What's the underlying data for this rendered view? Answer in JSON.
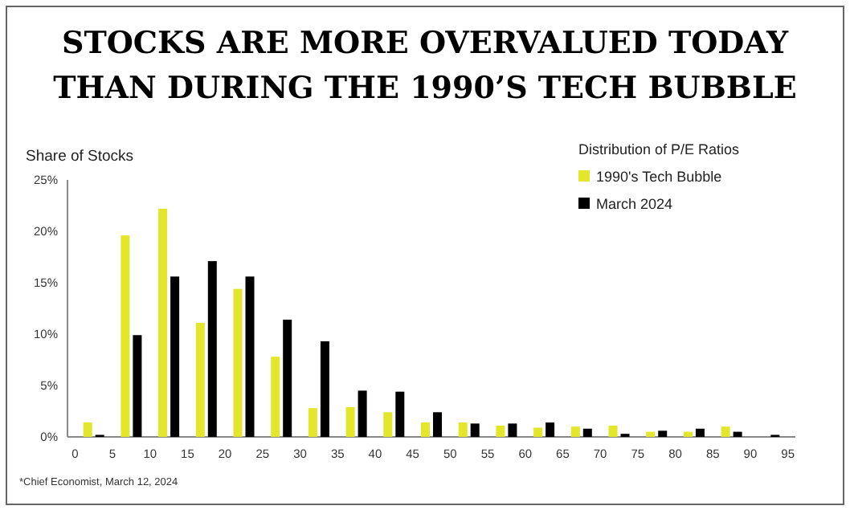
{
  "chart_data": {
    "type": "bar",
    "title": "STOCKS ARE MORE OVERVALUED TODAY THAN DURING THE 1990’S TECH BUBBLE",
    "ylabel": "Share of Stocks",
    "legend_title": "Distribution of P/E Ratios",
    "legend": "top right",
    "grid": false,
    "x": [
      2.5,
      7.5,
      12.5,
      17.5,
      22.5,
      27.5,
      32.5,
      37.5,
      42.5,
      47.5,
      52.5,
      57.5,
      62.5,
      67.5,
      72.5,
      77.5,
      82.5,
      87.5,
      92.5
    ],
    "xlim": [
      -1,
      96
    ],
    "xticks": [
      0,
      5,
      10,
      15,
      20,
      25,
      30,
      35,
      40,
      45,
      50,
      55,
      60,
      65,
      70,
      75,
      80,
      85,
      90,
      95
    ],
    "ylim": [
      0,
      25
    ],
    "yticks": [
      {
        "value": 0,
        "label": "0%"
      },
      {
        "value": 5,
        "label": "5%"
      },
      {
        "value": 10,
        "label": "10%"
      },
      {
        "value": 15,
        "label": "15%"
      },
      {
        "value": 20,
        "label": "20%"
      },
      {
        "value": 25,
        "label": "25%"
      }
    ],
    "series": [
      {
        "name": "1990's Tech Bubble",
        "color": "#e3e62b",
        "values": [
          1.4,
          19.6,
          22.2,
          11.1,
          14.4,
          7.8,
          2.8,
          2.9,
          2.4,
          1.4,
          1.4,
          1.1,
          0.9,
          1.0,
          1.1,
          0.5,
          0.5,
          1.0,
          0
        ]
      },
      {
        "name": "March 2024",
        "color": "#000000",
        "values": [
          0.2,
          9.9,
          15.6,
          17.1,
          15.6,
          11.4,
          9.3,
          4.5,
          4.4,
          2.4,
          1.3,
          1.3,
          1.4,
          0.8,
          0.3,
          0.6,
          0.8,
          0.5,
          0.2
        ]
      }
    ],
    "annotations": [
      "*Chief Economist, March 12, 2024"
    ]
  }
}
